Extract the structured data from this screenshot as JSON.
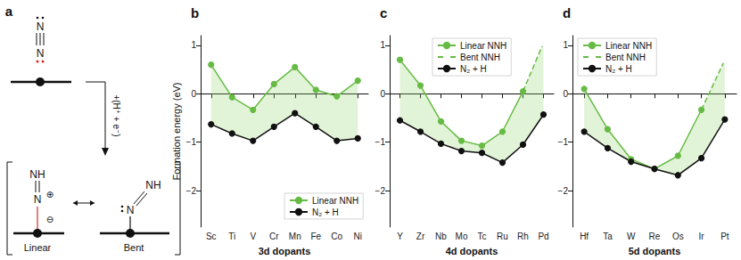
{
  "diagram": {
    "panel": "a",
    "reactant": {
      "top": "N",
      "bottom": "N"
    },
    "step": "+(H⁺ + e⁻)",
    "products": [
      {
        "label": "Linear",
        "top": "NH",
        "bottom": "N",
        "charges": [
          "⊕",
          "⊖"
        ]
      },
      {
        "label": "Bent",
        "top": "NH",
        "bottom": "N"
      }
    ]
  },
  "chart_data": [
    {
      "type": "line",
      "panel": "b",
      "x_label": "3d dopants",
      "y_label": "Formation energy (eV)",
      "categories": [
        "Sc",
        "Ti",
        "V",
        "Cr",
        "Mn",
        "Fe",
        "Co",
        "Ni"
      ],
      "series": [
        {
          "name": "Linear NNH",
          "color": "#66bb44",
          "marker": "circle",
          "line_style": "solid",
          "values": [
            0.6,
            -0.07,
            -0.33,
            0.2,
            0.55,
            0.08,
            -0.05,
            0.27
          ]
        },
        {
          "name": "N₂ + H",
          "color": "#111111",
          "marker": "circle",
          "line_style": "solid",
          "values": [
            -0.63,
            -0.82,
            -0.97,
            -0.68,
            -0.4,
            -0.68,
            -0.97,
            -0.92
          ]
        }
      ],
      "ylim": [
        -2.75,
        1.2
      ],
      "yticks": [
        {
          "value": -2,
          "label": "−2"
        },
        {
          "value": -1,
          "label": "−1"
        },
        0,
        1
      ],
      "legend": "lower right",
      "grid": false
    },
    {
      "type": "line",
      "panel": "c",
      "x_label": "4d dopants",
      "categories": [
        "Y",
        "Zr",
        "Nb",
        "Mo",
        "Tc",
        "Ru",
        "Rh",
        "Pd"
      ],
      "series": [
        {
          "name": "Linear NNH",
          "color": "#66bb44",
          "marker": "circle",
          "line_style": "solid",
          "values": [
            0.7,
            0.17,
            -0.57,
            -0.97,
            -1.07,
            -0.78,
            0.05,
            null
          ]
        },
        {
          "name": "Bent NNH",
          "color": "#66bb44",
          "marker": "open_circle",
          "line_style": "dashed",
          "values": [
            null,
            null,
            null,
            null,
            null,
            null,
            null,
            1.05
          ]
        },
        {
          "name": "N₂ + H",
          "color": "#111111",
          "marker": "circle",
          "line_style": "solid",
          "values": [
            -0.55,
            -0.78,
            -1.03,
            -1.18,
            -1.22,
            -1.42,
            -1.05,
            -0.43
          ]
        }
      ],
      "ylim": [
        -2.75,
        1.2
      ],
      "yticks": [
        {
          "value": -2,
          "label": "−2"
        },
        {
          "value": -1,
          "label": "−1"
        },
        0,
        1
      ],
      "legend": "upper center",
      "grid": false
    },
    {
      "type": "line",
      "panel": "d",
      "x_label": "5d dopants",
      "categories": [
        "Hf",
        "Ta",
        "W",
        "Re",
        "Os",
        "Ir",
        "Pt"
      ],
      "series": [
        {
          "name": "Linear NNH",
          "color": "#66bb44",
          "marker": "circle",
          "line_style": "solid",
          "values": [
            0.1,
            -0.73,
            -1.35,
            -1.55,
            -1.28,
            -0.33,
            null
          ]
        },
        {
          "name": "Bent NNH",
          "color": "#66bb44",
          "marker": "open_circle",
          "line_style": "dashed",
          "values": [
            null,
            null,
            null,
            null,
            null,
            null,
            0.7
          ]
        },
        {
          "name": "N₂ + H",
          "color": "#111111",
          "marker": "circle",
          "line_style": "solid",
          "values": [
            -0.78,
            -1.12,
            -1.4,
            -1.55,
            -1.68,
            -1.33,
            -0.53
          ]
        }
      ],
      "ylim": [
        -2.75,
        1.2
      ],
      "yticks": [
        {
          "value": -2,
          "label": "−2"
        },
        {
          "value": -1,
          "label": "−1"
        },
        0,
        1
      ],
      "legend": "upper left",
      "grid": false
    }
  ]
}
